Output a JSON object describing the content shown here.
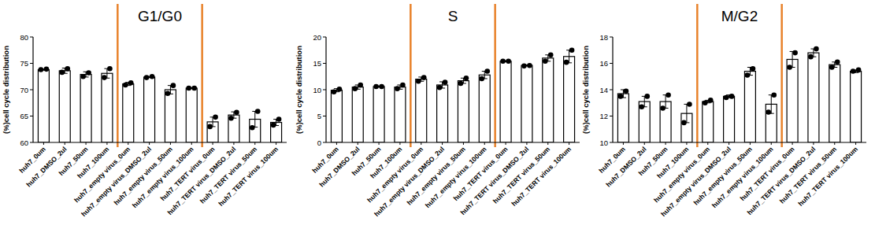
{
  "chart_data": [
    {
      "type": "bar",
      "title": "G1/G0",
      "y_label": "(%)cell cycle distribution",
      "categories": [
        "huh7_0um",
        "huh7_DMSO_2ul",
        "huh7_50um",
        "huh7_100um",
        "huh7_empty virus_0um",
        "huh7_empty virus_DMSO_2ul",
        "huh7_empty virus_50um",
        "huh7_empty virus_100um",
        "huh7_TERT virus_0um",
        "huh7_TERT virus_DMSO_2ul",
        "huh7_TERT virus_50um",
        "huh7_TERT virus_100um"
      ],
      "values": [
        73.8,
        73.6,
        72.9,
        73.1,
        71.1,
        72.4,
        70.0,
        70.3,
        63.9,
        65.2,
        64.4,
        63.8
      ],
      "errors": [
        0.1,
        0.5,
        0.5,
        0.9,
        0.3,
        0.1,
        0.8,
        0.1,
        0.9,
        0.6,
        1.5,
        0.6
      ],
      "points": [
        [
          73.8,
          73.9
        ],
        [
          73.3,
          74.0
        ],
        [
          72.5,
          73.2
        ],
        [
          72.3,
          74.0
        ],
        [
          70.9,
          71.3
        ],
        [
          72.3,
          72.5
        ],
        [
          69.3,
          70.8
        ],
        [
          70.3,
          70.3
        ],
        [
          63.0,
          64.8
        ],
        [
          64.6,
          65.7
        ],
        [
          62.8,
          65.9
        ],
        [
          63.3,
          64.4
        ]
      ],
      "color": "#ffffff",
      "ylim": [
        60,
        80
      ],
      "yticks": [
        60,
        65,
        70,
        75,
        80
      ]
    },
    {
      "type": "bar",
      "title": "S",
      "y_label": "(%)cell cycle distribution",
      "categories": [
        "huh7_0um",
        "huh7_DMSO_2ul",
        "huh7_50um",
        "huh7_100um",
        "huh7_empty virus_0um",
        "huh7_empty virus_DMSO_2ul",
        "huh7_empty virus_50um",
        "huh7_empty virus_100um",
        "huh7_TERT virus_0um",
        "huh7_TERT virus_DMSO_2ul",
        "huh7_TERT virus_50um",
        "huh7_TERT virus_100um"
      ],
      "values": [
        9.9,
        10.5,
        10.6,
        10.5,
        12.0,
        10.9,
        11.7,
        12.8,
        15.4,
        14.6,
        16.0,
        16.3
      ],
      "errors": [
        0.3,
        0.4,
        0.1,
        0.4,
        0.4,
        0.6,
        0.5,
        0.7,
        0.1,
        0.1,
        0.6,
        1.2
      ],
      "points": [
        [
          9.6,
          10.1
        ],
        [
          10.2,
          10.9
        ],
        [
          10.6,
          10.6
        ],
        [
          10.2,
          10.9
        ],
        [
          11.6,
          12.3
        ],
        [
          10.4,
          11.4
        ],
        [
          11.2,
          12.2
        ],
        [
          12.1,
          13.5
        ],
        [
          15.4,
          15.4
        ],
        [
          14.5,
          14.6
        ],
        [
          15.4,
          16.6
        ],
        [
          15.2,
          17.5
        ]
      ],
      "color": "#ffffff",
      "ylim": [
        0,
        20
      ],
      "yticks": [
        0,
        5,
        10,
        15,
        20
      ]
    },
    {
      "type": "bar",
      "title": "M/G2",
      "y_label": "(%)cell cycle distribution",
      "categories": [
        "huh7_0um",
        "huh7_DMSO_2ul",
        "huh7_50um",
        "huh7_100um",
        "huh7_empty virus_0um",
        "huh7_empty virus_DMSO_2ul",
        "huh7_empty virus_50um",
        "huh7_empty virus_100um",
        "huh7_TERT virus_0um",
        "huh7_TERT virus_DMSO_2ul",
        "huh7_TERT virus_50um",
        "huh7_TERT virus_100um"
      ],
      "values": [
        13.7,
        13.1,
        13.1,
        12.2,
        13.1,
        13.5,
        15.4,
        12.9,
        16.3,
        16.8,
        15.9,
        15.4
      ],
      "errors": [
        0.3,
        0.4,
        0.5,
        0.7,
        0.1,
        0.1,
        0.3,
        0.7,
        0.6,
        0.3,
        0.2,
        0.1
      ],
      "points": [
        [
          13.5,
          13.9
        ],
        [
          12.7,
          13.5
        ],
        [
          12.6,
          13.6
        ],
        [
          11.5,
          12.9
        ],
        [
          13.0,
          13.2
        ],
        [
          13.4,
          13.5
        ],
        [
          15.1,
          15.6
        ],
        [
          12.3,
          13.6
        ],
        [
          15.7,
          16.8
        ],
        [
          16.5,
          17.1
        ],
        [
          15.7,
          16.1
        ],
        [
          15.4,
          15.5
        ]
      ],
      "color": "#ffffff",
      "ylim": [
        10,
        18
      ],
      "yticks": [
        10,
        12,
        14,
        16,
        18
      ]
    }
  ]
}
